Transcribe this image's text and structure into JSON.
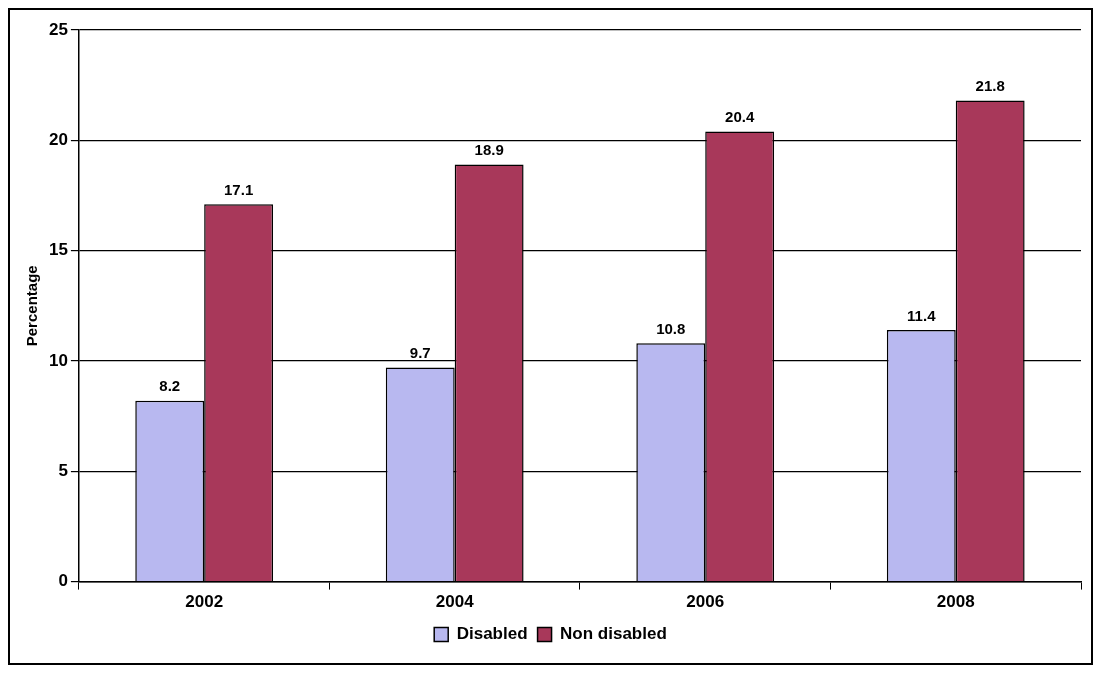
{
  "chart_data": {
    "type": "bar",
    "ylabel": "Percentage",
    "categories": [
      "2002",
      "2004",
      "2006",
      "2008"
    ],
    "series": [
      {
        "name": "Disabled",
        "color": "#b8b8f0",
        "values": [
          8.2,
          9.7,
          10.8,
          11.4
        ]
      },
      {
        "name": "Non disabled",
        "color": "#a8385a",
        "values": [
          17.1,
          18.9,
          20.4,
          21.8
        ]
      }
    ],
    "ylim": [
      0,
      25
    ],
    "yticks": [
      0,
      5,
      10,
      15,
      20,
      25
    ],
    "grid": "y",
    "legend": "bottom",
    "data_labels": true
  }
}
